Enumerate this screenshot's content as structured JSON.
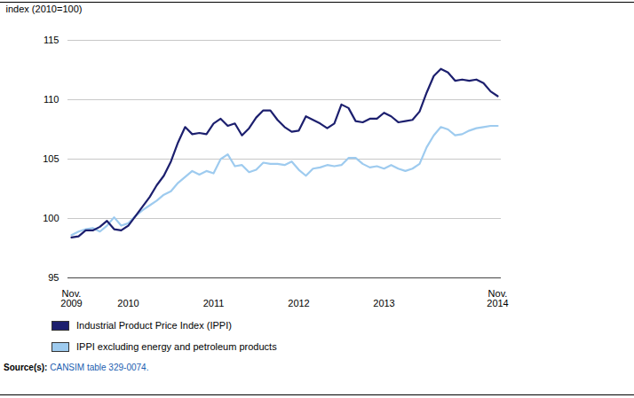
{
  "chart_data": {
    "type": "line",
    "y_label": "index (2010=100)",
    "categories": [
      "Nov. 2009",
      null,
      null,
      null,
      null,
      null,
      null,
      null,
      "2010",
      null,
      null,
      null,
      null,
      null,
      null,
      null,
      null,
      null,
      null,
      null,
      "2011",
      null,
      null,
      null,
      null,
      null,
      null,
      null,
      null,
      null,
      null,
      null,
      "2012",
      null,
      null,
      null,
      null,
      null,
      null,
      null,
      null,
      null,
      null,
      null,
      "2013",
      null,
      null,
      null,
      null,
      null,
      null,
      null,
      null,
      null,
      null,
      null,
      null,
      null,
      null,
      null,
      "Nov. 2014"
    ],
    "series": [
      {
        "name": "Industrial Product Price Index (IPPI)",
        "color": "#1c1f6e",
        "values": [
          98.4,
          98.5,
          99.0,
          99.0,
          99.3,
          99.8,
          99.1,
          99.0,
          99.4,
          100.2,
          101.0,
          101.8,
          102.8,
          103.6,
          104.8,
          106.4,
          107.7,
          107.1,
          107.2,
          107.1,
          108.0,
          108.4,
          107.8,
          108.0,
          107.0,
          107.6,
          108.5,
          109.1,
          109.1,
          108.3,
          107.7,
          107.3,
          107.4,
          108.6,
          108.3,
          108.0,
          107.6,
          108.0,
          109.6,
          109.3,
          108.2,
          108.1,
          108.4,
          108.4,
          108.9,
          108.6,
          108.1,
          108.2,
          108.3,
          109.0,
          110.6,
          112.0,
          112.6,
          112.3,
          111.6,
          111.7,
          111.6,
          111.7,
          111.4,
          110.7,
          110.3
        ]
      },
      {
        "name": "IPPI excluding energy and petroleum products",
        "color": "#9ecbef",
        "values": [
          98.6,
          98.9,
          99.1,
          99.2,
          98.9,
          99.4,
          100.1,
          99.4,
          99.6,
          100.2,
          100.7,
          101.1,
          101.5,
          102.0,
          102.3,
          103.0,
          103.5,
          104.0,
          103.7,
          104.0,
          103.8,
          105.0,
          105.4,
          104.4,
          104.5,
          103.9,
          104.1,
          104.7,
          104.6,
          104.6,
          104.5,
          104.8,
          104.1,
          103.6,
          104.2,
          104.3,
          104.5,
          104.4,
          104.5,
          105.1,
          105.1,
          104.6,
          104.3,
          104.4,
          104.2,
          104.5,
          104.2,
          104.0,
          104.2,
          104.6,
          106.0,
          107.0,
          107.7,
          107.5,
          107.0,
          107.1,
          107.4,
          107.6,
          107.7,
          107.8,
          107.8
        ]
      }
    ],
    "ylim": [
      95,
      115
    ],
    "yticks": [
      95,
      100,
      105,
      110,
      115
    ],
    "grid": true,
    "legend": "bottom",
    "source_label": "Source(s):",
    "source": "CANSIM table 329-0074."
  }
}
